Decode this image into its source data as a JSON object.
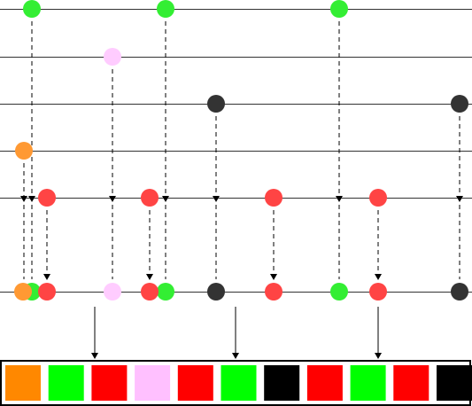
{
  "diagram": {
    "type": "marble-diagram",
    "lane_count": 6,
    "colors": {
      "green": "#33ee33",
      "pink": "#ffccff",
      "dark": "#333333",
      "orange": "#ff9933",
      "red": "#ff4444"
    },
    "events": [
      {
        "lane": 0,
        "color": "green",
        "order": 1
      },
      {
        "lane": 0,
        "color": "green",
        "order": 5
      },
      {
        "lane": 0,
        "color": "green",
        "order": 8
      },
      {
        "lane": 1,
        "color": "pink",
        "order": 3
      },
      {
        "lane": 2,
        "color": "dark",
        "order": 6
      },
      {
        "lane": 2,
        "color": "dark",
        "order": 10
      },
      {
        "lane": 3,
        "color": "orange",
        "order": 0
      },
      {
        "lane": 4,
        "color": "red",
        "order": 2
      },
      {
        "lane": 4,
        "color": "red",
        "order": 4
      },
      {
        "lane": 4,
        "color": "red",
        "order": 7
      },
      {
        "lane": 4,
        "color": "red",
        "order": 9
      }
    ],
    "output_sequence": [
      "#ff8800",
      "#00ff00",
      "#ff0000",
      "#ffc0ff",
      "#ff0000",
      "#00ff00",
      "#000000",
      "#ff0000",
      "#00ff00",
      "#ff0000",
      "#000000"
    ]
  }
}
